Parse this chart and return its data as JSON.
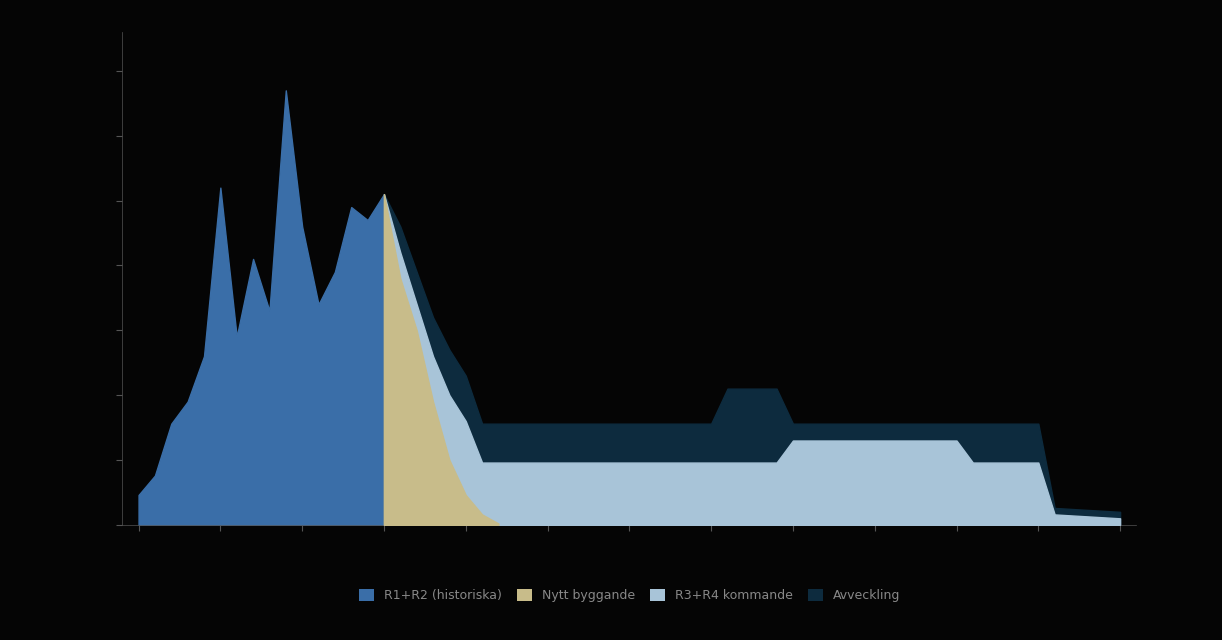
{
  "background_color": "#050505",
  "plot_bg_color": "#050505",
  "legend_colors": [
    "#3a6ea8",
    "#c8bc8a",
    "#a8c4d8",
    "#0d2b3e"
  ],
  "legend_labels": [
    "R1+R2 (historiska)",
    "Nytt byggande",
    "R3+R4 kommande",
    "Avveckling"
  ],
  "tick_color": "#555555",
  "spine_color": "#555555",
  "xlim": [
    2004,
    2066
  ],
  "ylim": [
    0,
    3800
  ],
  "hist_x": [
    2005,
    2006,
    2007,
    2008,
    2009,
    2010,
    2011,
    2012,
    2013,
    2014,
    2015,
    2016,
    2017,
    2018,
    2019,
    2020
  ],
  "hist_y": [
    230,
    380,
    780,
    950,
    1300,
    2600,
    1450,
    2050,
    1650,
    3350,
    2300,
    1700,
    1950,
    2450,
    2350,
    2550
  ],
  "dark_x": [
    2020,
    2021,
    2022,
    2023,
    2024,
    2025,
    2026,
    2027,
    2028,
    2029,
    2030,
    2031,
    2040,
    2041,
    2044,
    2045,
    2055,
    2056,
    2060,
    2061,
    2065
  ],
  "dark_y": [
    2550,
    2300,
    1950,
    1600,
    1350,
    1150,
    780,
    780,
    780,
    780,
    780,
    780,
    780,
    1050,
    1050,
    780,
    780,
    780,
    780,
    130,
    100
  ],
  "lblue_x": [
    2020,
    2021,
    2022,
    2023,
    2024,
    2025,
    2026,
    2027,
    2028,
    2029,
    2044,
    2045,
    2055,
    2056,
    2060,
    2061,
    2065
  ],
  "lblue_y": [
    2550,
    2100,
    1700,
    1300,
    1000,
    800,
    480,
    480,
    480,
    480,
    480,
    650,
    650,
    480,
    480,
    80,
    50
  ],
  "tan_x": [
    2020,
    2021,
    2022,
    2023,
    2024,
    2025,
    2026,
    2027
  ],
  "tan_y": [
    2550,
    1900,
    1500,
    950,
    500,
    230,
    80,
    10
  ]
}
